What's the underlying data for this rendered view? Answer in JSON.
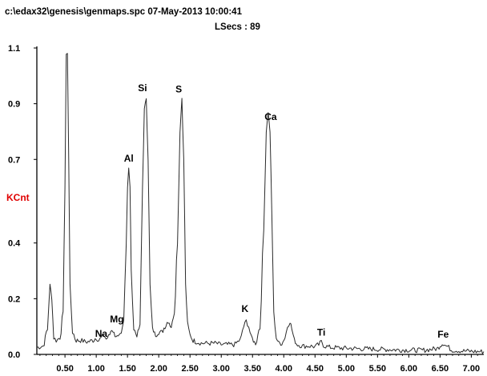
{
  "header": {
    "file_line": "c:\\edax32\\genesis\\genmaps.spc  07-May-2013 10:00:41",
    "lsecs_line": "LSecs :  89"
  },
  "colors": {
    "spectrum": "#2a2a2a",
    "axis": "#000000",
    "ylabel": "#e00000"
  },
  "chart_data": {
    "type": "line",
    "title": "",
    "xlabel": "",
    "ylabel": "KCnt",
    "xlim": [
      0.05,
      7.2
    ],
    "ylim": [
      0,
      1.1
    ],
    "grid": false,
    "x_ticks": [
      0.5,
      1.0,
      1.5,
      2.0,
      2.5,
      3.0,
      3.5,
      4.0,
      4.5,
      5.0,
      5.5,
      6.0,
      6.5,
      7.0
    ],
    "x_tick_labels": [
      "0.50",
      "1.00",
      "1.50",
      "2.00",
      "2.50",
      "3.00",
      "3.50",
      "4.00",
      "4.50",
      "5.00",
      "5.50",
      "6.00",
      "6.50",
      "7.00"
    ],
    "y_ticks": [
      0.0,
      0.2,
      0.4,
      0.7,
      0.9,
      1.1
    ],
    "y_tick_labels": [
      "0.0",
      "0.2",
      "0.4",
      "0.7",
      "0.9",
      "1.1"
    ],
    "series": [
      {
        "x": [
          0.05,
          0.15,
          0.22,
          0.26,
          0.29,
          0.32,
          0.36,
          0.42,
          0.47,
          0.5,
          0.52,
          0.54,
          0.56,
          0.58,
          0.62,
          0.68,
          0.75,
          0.85,
          0.95,
          1.0,
          1.04,
          1.08,
          1.12,
          1.16,
          1.2,
          1.25,
          1.3,
          1.35,
          1.4,
          1.44,
          1.48,
          1.5,
          1.52,
          1.54,
          1.56,
          1.6,
          1.65,
          1.7,
          1.74,
          1.77,
          1.8,
          1.83,
          1.86,
          1.9,
          1.95,
          2.0,
          2.05,
          2.1,
          2.15,
          2.2,
          2.25,
          2.3,
          2.34,
          2.37,
          2.4,
          2.43,
          2.46,
          2.5,
          2.55,
          2.6,
          2.7,
          2.8,
          2.9,
          3.0,
          3.1,
          3.2,
          3.3,
          3.36,
          3.4,
          3.44,
          3.48,
          3.55,
          3.62,
          3.68,
          3.72,
          3.75,
          3.78,
          3.81,
          3.84,
          3.88,
          3.92,
          3.97,
          4.02,
          4.06,
          4.1,
          4.13,
          4.17,
          4.22,
          4.3,
          4.4,
          4.5,
          4.56,
          4.6,
          4.65,
          4.75,
          5.0,
          5.3,
          5.6,
          5.9,
          6.2,
          6.45,
          6.52,
          6.55,
          6.6,
          6.7,
          6.9,
          7.1,
          7.2
        ],
        "y": [
          0.025,
          0.03,
          0.09,
          0.25,
          0.2,
          0.06,
          0.05,
          0.06,
          0.15,
          0.6,
          1.08,
          1.08,
          0.7,
          0.25,
          0.08,
          0.05,
          0.05,
          0.045,
          0.05,
          0.06,
          0.05,
          0.06,
          0.07,
          0.055,
          0.065,
          0.09,
          0.07,
          0.06,
          0.07,
          0.12,
          0.4,
          0.6,
          0.67,
          0.6,
          0.3,
          0.09,
          0.07,
          0.1,
          0.6,
          0.88,
          0.92,
          0.7,
          0.25,
          0.09,
          0.07,
          0.08,
          0.08,
          0.1,
          0.12,
          0.1,
          0.15,
          0.4,
          0.8,
          0.92,
          0.7,
          0.25,
          0.11,
          0.07,
          0.05,
          0.045,
          0.04,
          0.04,
          0.04,
          0.035,
          0.035,
          0.035,
          0.05,
          0.1,
          0.12,
          0.1,
          0.06,
          0.04,
          0.1,
          0.45,
          0.8,
          0.87,
          0.8,
          0.5,
          0.15,
          0.06,
          0.04,
          0.04,
          0.06,
          0.1,
          0.12,
          0.09,
          0.05,
          0.035,
          0.03,
          0.03,
          0.028,
          0.035,
          0.045,
          0.03,
          0.025,
          0.022,
          0.02,
          0.018,
          0.016,
          0.015,
          0.02,
          0.035,
          0.04,
          0.03,
          0.015,
          0.012,
          0.01,
          0.01
        ]
      }
    ],
    "annotations": [
      {
        "text": "Na",
        "x": 1.08,
        "y": 0.063
      },
      {
        "text": "Mg",
        "x": 1.33,
        "y": 0.115
      },
      {
        "text": "Al",
        "x": 1.52,
        "y": 0.692
      },
      {
        "text": "Si",
        "x": 1.74,
        "y": 0.945
      },
      {
        "text": "S",
        "x": 2.32,
        "y": 0.94
      },
      {
        "text": "Ca",
        "x": 3.79,
        "y": 0.842
      },
      {
        "text": "K",
        "x": 3.38,
        "y": 0.152
      },
      {
        "text": "Ti",
        "x": 4.6,
        "y": 0.068
      },
      {
        "text": "Fe",
        "x": 6.55,
        "y": 0.06
      }
    ]
  }
}
